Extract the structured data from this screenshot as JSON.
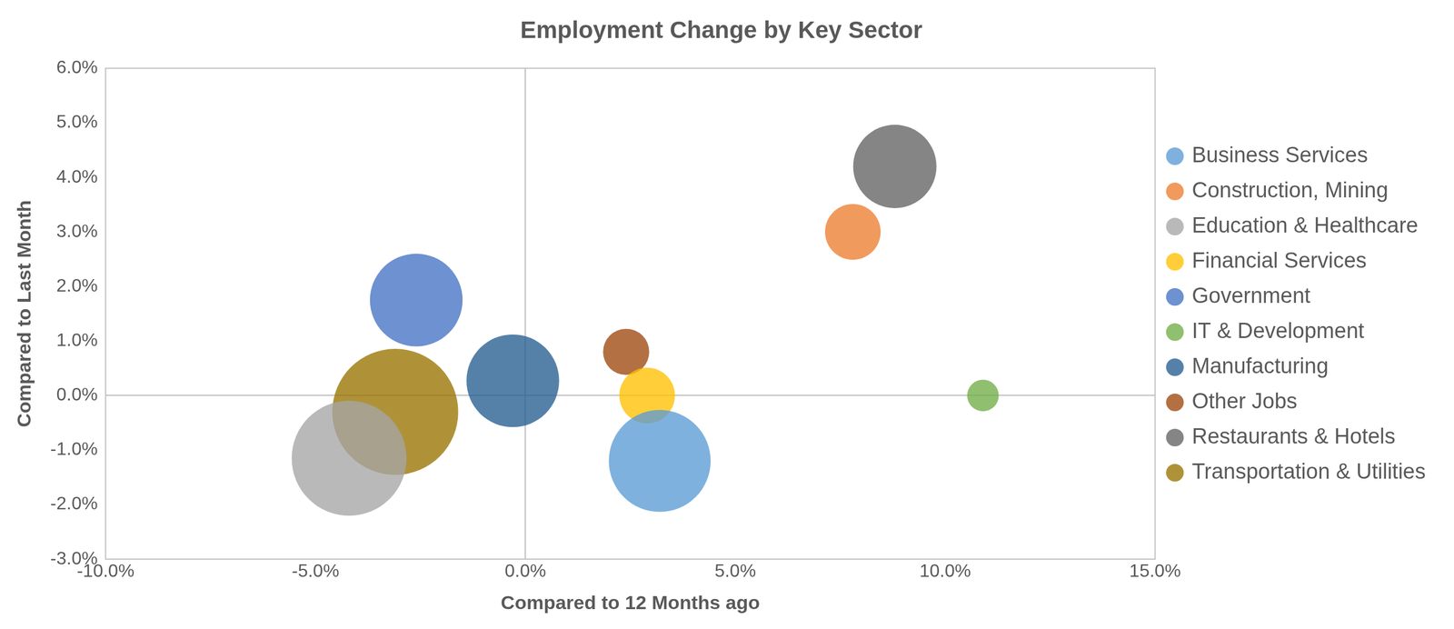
{
  "chart_data": {
    "type": "bubble",
    "title": "Employment Change by Key Sector",
    "x_label": "Compared to 12 Months ago",
    "y_label": "Compared to Last Month",
    "xlim": [
      -10,
      15
    ],
    "xticks": [
      {
        "value": -10,
        "label": "-10.0%"
      },
      {
        "value": -5,
        "label": "-5.0%"
      },
      {
        "value": 0,
        "label": "0.0%"
      },
      {
        "value": 5,
        "label": "5.0%"
      },
      {
        "value": 10,
        "label": "10.0%"
      },
      {
        "value": 15,
        "label": "15.0%"
      }
    ],
    "ylim": [
      -3,
      6
    ],
    "yticks": [
      {
        "value": -3,
        "label": "-3.0%"
      },
      {
        "value": -2,
        "label": "-2.0%"
      },
      {
        "value": -1,
        "label": "-1.0%"
      },
      {
        "value": 0,
        "label": "0.0%"
      },
      {
        "value": 1,
        "label": "1.0%"
      },
      {
        "value": 2,
        "label": "2.0%"
      },
      {
        "value": 3,
        "label": "3.0%"
      },
      {
        "value": 4,
        "label": "4.0%"
      },
      {
        "value": 5,
        "label": "5.0%"
      },
      {
        "value": 6,
        "label": "6.0%"
      }
    ],
    "grid": false,
    "legend": "right",
    "series": [
      {
        "name": "Business Services",
        "color": "#5B9BD5",
        "x": 3.2,
        "y": -1.2,
        "size": 302
      },
      {
        "name": "Construction, Mining",
        "color": "#ED7D31",
        "x": 7.8,
        "y": 3.0,
        "size": 90
      },
      {
        "name": "Education & Healthcare",
        "color": "#A5A5A5",
        "x": -4.2,
        "y": -1.15,
        "size": 384
      },
      {
        "name": "Financial Services",
        "color": "#FFC000",
        "x": 2.9,
        "y": 0.0,
        "size": 90
      },
      {
        "name": "Government",
        "color": "#4472C4",
        "x": -2.6,
        "y": 1.75,
        "size": 250
      },
      {
        "name": "IT & Development",
        "color": "#70AD47",
        "x": 10.9,
        "y": 0.0,
        "size": 29
      },
      {
        "name": "Manufacturing",
        "color": "#255E91",
        "x": -0.3,
        "y": 0.27,
        "size": 250
      },
      {
        "name": "Other Jobs",
        "color": "#9E480E",
        "x": 2.4,
        "y": 0.8,
        "size": 62
      },
      {
        "name": "Restaurants & Hotels",
        "color": "#636363",
        "x": 8.8,
        "y": 4.2,
        "size": 202
      },
      {
        "name": "Transportation & Utilities",
        "color": "#997300",
        "x": -3.1,
        "y": -0.3,
        "size": 462
      }
    ]
  }
}
